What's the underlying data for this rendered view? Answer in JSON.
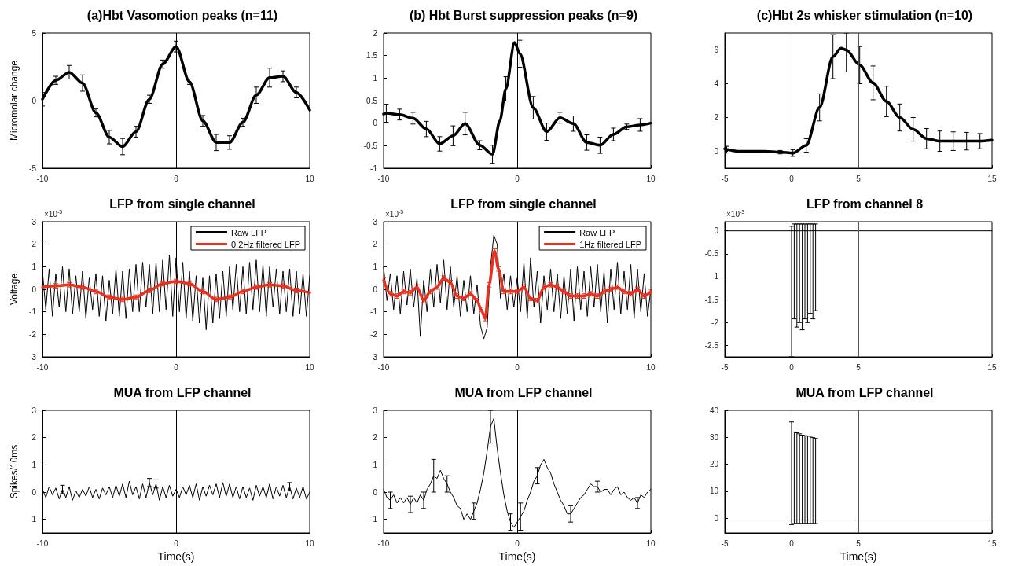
{
  "chart_data": [
    {
      "type": "line",
      "title": "(a)Hbt Vasomotion peaks (n=11)",
      "ylabel": "Micromolar change",
      "xlim": [
        -10,
        10
      ],
      "xticks": [
        -10,
        0,
        10
      ],
      "ylim": [
        -5,
        5
      ],
      "yticks": [
        -5,
        0,
        5
      ],
      "marker": "none",
      "line_style": "solid",
      "ref_lines": [
        {
          "axis": "x",
          "value": 0,
          "color": "#000000"
        }
      ],
      "series": [
        {
          "color": "#000000",
          "x": [
            -10,
            -9,
            -8,
            -7,
            -6,
            -5,
            -4,
            -3,
            -2,
            -1,
            0,
            1,
            2,
            3,
            4,
            5,
            6,
            7,
            8,
            9,
            10
          ],
          "values": [
            0.1,
            1.5,
            2.1,
            1.3,
            -0.9,
            -2.7,
            -3.4,
            -2.3,
            0.1,
            2.7,
            4.0,
            1.4,
            -1.5,
            -3.1,
            -3.1,
            -1.6,
            0.4,
            1.7,
            1.8,
            0.6,
            -0.7
          ],
          "errors": [
            0.5,
            0.3,
            0.5,
            0.6,
            0.3,
            0.5,
            0.6,
            0.4,
            0.3,
            0.3,
            0.4,
            0.2,
            0.4,
            0.6,
            0.5,
            0.3,
            0.6,
            0.7,
            0.4,
            0.4,
            null
          ]
        }
      ]
    },
    {
      "type": "line",
      "title": "(b) Hbt Burst suppression peaks (n=9)",
      "xlim": [
        -10,
        10
      ],
      "xticks": [
        -10,
        0,
        10
      ],
      "ylim": [
        -1,
        2
      ],
      "yticks": [
        -1,
        -0.5,
        0,
        0.5,
        1,
        1.5,
        2
      ],
      "marker": "none",
      "line_style": "solid",
      "ref_lines": [
        {
          "axis": "x",
          "value": 0,
          "color": "#000000"
        }
      ],
      "series": [
        {
          "color": "#000000",
          "x": [
            -10,
            -9.8,
            -8.8,
            -7.8,
            -6.8,
            -5.8,
            -4.8,
            -3.9,
            -2.8,
            -1.85,
            -1.3,
            -0.85,
            -0.2,
            0.2,
            1.2,
            2.2,
            3.2,
            4.2,
            5.2,
            6.2,
            7.2,
            8.2,
            9.2,
            10
          ],
          "values": [
            0.2,
            0.22,
            0.19,
            0.11,
            -0.13,
            -0.46,
            -0.28,
            -0.01,
            -0.49,
            -0.69,
            0.05,
            0.76,
            1.79,
            1.54,
            0.34,
            -0.19,
            0.12,
            -0.01,
            -0.43,
            -0.49,
            -0.25,
            -0.08,
            -0.04,
            0.0
          ],
          "errors": [
            null,
            0.2,
            0.12,
            0.13,
            0.17,
            0.16,
            0.22,
            0.25,
            0.1,
            0.2,
            null,
            0.27,
            null,
            0.3,
            0.25,
            0.19,
            0.12,
            0.17,
            0.17,
            0.18,
            0.14,
            0.06,
            0.14,
            null
          ]
        }
      ]
    },
    {
      "type": "line",
      "title": "(c)Hbt 2s whisker stimulation (n=10)",
      "xlim": [
        -5,
        15
      ],
      "xticks": [
        -5,
        0,
        5,
        15
      ],
      "ylim": [
        -1,
        7
      ],
      "yticks": [
        0,
        2,
        4,
        6
      ],
      "marker": "none",
      "line_style": "solid",
      "ref_lines": [
        {
          "axis": "x",
          "value": 0,
          "color": "#555555"
        },
        {
          "axis": "x",
          "value": 5,
          "color": "#555555"
        }
      ],
      "series": [
        {
          "color": "#000000",
          "x": [
            -5,
            -4.85,
            -4,
            -3,
            -2,
            -0.85,
            0.1,
            1.1,
            2.1,
            3.1,
            3.7,
            4.1,
            5.1,
            6.1,
            7.1,
            8.1,
            9.1,
            10.1,
            11.1,
            12.1,
            13.1,
            14.1,
            15
          ],
          "values": [
            0.15,
            0.1,
            0.0,
            0.0,
            0.0,
            -0.05,
            -0.1,
            0.35,
            2.6,
            5.6,
            6.1,
            6.0,
            5.1,
            4.05,
            2.95,
            2.0,
            1.3,
            0.75,
            0.6,
            0.6,
            0.6,
            0.6,
            0.66
          ],
          "errors": [
            null,
            0.2,
            null,
            null,
            null,
            0.1,
            0.2,
            0.4,
            0.8,
            1.3,
            null,
            [
              4.7,
              7
            ],
            1.1,
            1.0,
            0.9,
            0.8,
            0.7,
            0.6,
            0.6,
            0.55,
            0.52,
            0.45,
            null
          ]
        }
      ]
    },
    {
      "type": "line",
      "title": "LFP from single channel",
      "ylabel": "Voltage",
      "xlim": [
        -10,
        10
      ],
      "xticks": [
        -10,
        0,
        10
      ],
      "ylim": [
        -3,
        3
      ],
      "yticks": [
        -3,
        -2,
        -1,
        0,
        1,
        2,
        3
      ],
      "marker": "none",
      "line_style": "solid",
      "legend": "top right",
      "annotations": [
        "×10$^{-5}$"
      ],
      "ref_lines": [
        {
          "axis": "x",
          "value": 0,
          "color": "#000000"
        }
      ],
      "x": [
        -10,
        -9.75,
        -9.5,
        -9.25,
        -9,
        -8.75,
        -8.5,
        -8.25,
        -8,
        -7.75,
        -7.5,
        -7.25,
        -7,
        -6.75,
        -6.5,
        -6.25,
        -6,
        -5.75,
        -5.5,
        -5.25,
        -5,
        -4.75,
        -4.5,
        -4.25,
        -4,
        -3.75,
        -3.5,
        -3.25,
        -3,
        -2.75,
        -2.5,
        -2.25,
        -2,
        -1.75,
        -1.5,
        -1.25,
        -1,
        -0.75,
        -0.5,
        -0.25,
        0,
        0.25,
        0.5,
        0.75,
        1,
        1.25,
        1.5,
        1.75,
        2,
        2.25,
        2.5,
        2.75,
        3,
        3.25,
        3.5,
        3.75,
        4,
        4.25,
        4.5,
        4.75,
        5,
        5.25,
        5.5,
        5.75,
        6,
        6.25,
        6.5,
        6.75,
        7,
        7.25,
        7.5,
        7.75,
        8,
        8.25,
        8.5,
        8.75,
        9,
        9.25,
        9.5,
        9.75,
        10
      ],
      "series": [
        {
          "name": "Raw LFP",
          "color": "#000000",
          "values": [
            0.8,
            -0.9,
            0.9,
            -1.2,
            0.7,
            -0.8,
            1.0,
            -1.0,
            0.9,
            -1.1,
            0.6,
            -1.0,
            0.8,
            -1.3,
            0.5,
            -0.9,
            0.7,
            -1.2,
            0.6,
            -1.4,
            0.4,
            -1.1,
            0.9,
            -1.2,
            0.8,
            -1.3,
            0.9,
            -1.0,
            1.1,
            -1.0,
            1.2,
            -0.8,
            1.1,
            -1.1,
            1.2,
            -1.0,
            1.3,
            -0.9,
            1.5,
            -1.2,
            1.4,
            -1.0,
            1.2,
            -1.3,
            0.8,
            -1.4,
            0.6,
            -1.5,
            0.5,
            -1.8,
            0.6,
            -1.5,
            0.7,
            -1.3,
            0.8,
            -1.2,
            1.0,
            -0.9,
            1.1,
            -1.0,
            1.0,
            -1.1,
            1.2,
            -0.9,
            1.3,
            -1.0,
            1.1,
            -1.2,
            1.0,
            -0.8,
            0.9,
            -1.1,
            0.8,
            -1.0,
            0.9,
            -1.2,
            0.8,
            -1.1,
            0.7,
            -1.2,
            0.6
          ]
        },
        {
          "name": "0.2Hz filtered LFP",
          "color": "#e8301f",
          "x": [
            -10,
            -9,
            -8,
            -7,
            -6,
            -5,
            -4,
            -3,
            -2,
            -1,
            0,
            1,
            2,
            3,
            4,
            5,
            6,
            7,
            8,
            9,
            10
          ],
          "values": [
            0.1,
            0.15,
            0.2,
            0.1,
            -0.1,
            -0.35,
            -0.45,
            -0.35,
            -0.05,
            0.25,
            0.35,
            0.25,
            -0.1,
            -0.45,
            -0.35,
            -0.1,
            0.1,
            0.2,
            0.15,
            -0.05,
            -0.15
          ],
          "errors": [
            null,
            0.1,
            0.1,
            0.1,
            0.1,
            0.1,
            0.1,
            0.1,
            0.1,
            0.1,
            0.1,
            0.1,
            0.1,
            0.1,
            0.1,
            0.1,
            0.1,
            0.1,
            0.1,
            0.1,
            null
          ]
        }
      ]
    },
    {
      "type": "line",
      "title": "LFP from single channel",
      "xlim": [
        -10,
        10
      ],
      "xticks": [
        -10,
        0,
        10
      ],
      "ylim": [
        -3,
        3
      ],
      "yticks": [
        -3,
        -2,
        -1,
        0,
        1,
        2,
        3
      ],
      "marker": "none",
      "line_style": "solid",
      "legend": "top right",
      "annotations": [
        "×10$^{-5}$"
      ],
      "ref_lines": [
        {
          "axis": "x",
          "value": 0,
          "color": "#000000"
        }
      ],
      "x": [
        -10,
        -9.75,
        -9.5,
        -9.25,
        -9,
        -8.75,
        -8.5,
        -8.25,
        -8,
        -7.75,
        -7.5,
        -7.25,
        -7,
        -6.75,
        -6.5,
        -6.25,
        -6,
        -5.75,
        -5.5,
        -5.25,
        -5,
        -4.75,
        -4.5,
        -4.25,
        -4,
        -3.75,
        -3.5,
        -3.25,
        -3,
        -2.75,
        -2.5,
        -2.25,
        -2,
        -1.75,
        -1.5,
        -1.25,
        -1,
        -0.75,
        -0.5,
        -0.25,
        0,
        0.25,
        0.5,
        0.75,
        1,
        1.25,
        1.5,
        1.75,
        2,
        2.25,
        2.5,
        2.75,
        3,
        3.25,
        3.5,
        3.75,
        4,
        4.25,
        4.5,
        4.75,
        5,
        5.25,
        5.5,
        5.75,
        6,
        6.25,
        6.5,
        6.75,
        7,
        7.25,
        7.5,
        7.75,
        8,
        8.25,
        8.5,
        8.75,
        9,
        9.25,
        9.5,
        9.75,
        10
      ],
      "series": [
        {
          "name": "Raw LFP",
          "color": "#000000",
          "values": [
            1.0,
            -0.5,
            0.7,
            -0.9,
            0.6,
            -1.1,
            0.8,
            -0.7,
            0.9,
            -0.8,
            0.5,
            -2.1,
            0.4,
            -1.0,
            0.9,
            -0.8,
            1.1,
            -0.6,
            1.3,
            -0.9,
            1.0,
            -0.8,
            0.6,
            -1.2,
            0.4,
            -1.0,
            0.6,
            -1.1,
            0.2,
            -1.6,
            -2.2,
            -1.7,
            1.0,
            2.4,
            2.0,
            -0.4,
            0.7,
            -0.9,
            0.6,
            -0.8,
            0.5,
            -1.0,
            1.2,
            -1.3,
            1.4,
            -0.8,
            0.8,
            -1.5,
            0.6,
            -0.9,
            0.9,
            -1.0,
            0.7,
            -1.3,
            0.6,
            -1.1,
            0.9,
            -1.4,
            1.0,
            -0.9,
            0.8,
            -1.2,
            1.0,
            -0.8,
            1.1,
            -1.0,
            0.8,
            -1.5,
            0.9,
            -0.9,
            1.2,
            -1.1,
            0.8,
            -0.9,
            1.1,
            -1.3,
            0.9,
            -1.0,
            0.7,
            -1.2,
            0.0
          ]
        },
        {
          "name": "1Hz filtered LFP",
          "color": "#e8301f",
          "x": [
            -10,
            -9.5,
            -9,
            -8.5,
            -8,
            -7.5,
            -7,
            -6.5,
            -6,
            -5.5,
            -5,
            -4.5,
            -4,
            -3.5,
            -3,
            -2.7,
            -2.4,
            -2.1,
            -1.7,
            -1.4,
            -1.0,
            -0.5,
            0,
            0.5,
            1,
            1.5,
            2,
            2.5,
            3,
            3.5,
            4,
            4.5,
            5,
            5.5,
            6,
            6.5,
            7,
            7.5,
            8,
            8.5,
            9,
            9.5,
            10
          ],
          "values": [
            0.4,
            -0.2,
            -0.3,
            -0.1,
            -0.15,
            0.1,
            -0.5,
            -0.1,
            0.1,
            0.5,
            0.3,
            -0.3,
            -0.4,
            -0.2,
            -0.5,
            -0.9,
            -1.3,
            0.2,
            1.7,
            0.9,
            -0.1,
            -0.1,
            -0.1,
            0.1,
            -0.4,
            -0.5,
            0.1,
            0.2,
            0.1,
            -0.1,
            -0.3,
            -0.3,
            -0.3,
            -0.2,
            -0.3,
            -0.1,
            0.0,
            0.1,
            -0.1,
            -0.2,
            0.0,
            -0.3,
            -0.1
          ],
          "errors": [
            0.1,
            0.1,
            0.1,
            0.1,
            0.1,
            0.1,
            0.1,
            0.1,
            0.1,
            0.1,
            0.1,
            0.1,
            0.1,
            0.1,
            0.1,
            0.1,
            0.1,
            0.1,
            0.1,
            0.1,
            0.1,
            0.1,
            0.1,
            0.1,
            0.1,
            0.1,
            0.1,
            0.1,
            0.1,
            0.1,
            0.1,
            0.1,
            0.1,
            0.1,
            0.1,
            0.1,
            0.1,
            0.1,
            0.1,
            0.1,
            0.1,
            0.1,
            0.1
          ]
        }
      ]
    },
    {
      "type": "line",
      "title": "LFP from channel 8",
      "xlim": [
        -5,
        15
      ],
      "xticks": [
        -5,
        0,
        5,
        15
      ],
      "ylim": [
        -2.75,
        0.2
      ],
      "yticks": [
        -2.5,
        -2,
        -1.5,
        -1,
        -0.5,
        0
      ],
      "marker": "none",
      "line_style": "solid",
      "annotations": [
        "×10$^{-3}$"
      ],
      "ref_lines": [
        {
          "axis": "x",
          "value": 0,
          "color": "#555555"
        },
        {
          "axis": "x",
          "value": 5,
          "color": "#555555"
        }
      ],
      "series": [
        {
          "color": "#000000",
          "x": [
            -5,
            -4,
            -3,
            -2,
            -1,
            0,
            0.2,
            0.4,
            0.6,
            0.8,
            1,
            1.2,
            1.4,
            1.6,
            1.8,
            2,
            3,
            4,
            5,
            6,
            7,
            8,
            9,
            10,
            11,
            12,
            13,
            14,
            15
          ],
          "values": [
            0,
            0,
            0,
            0,
            0,
            0,
            0,
            0,
            0,
            0,
            0,
            0,
            0,
            0,
            0,
            0,
            0,
            0,
            0,
            0,
            0,
            0,
            0,
            0,
            0,
            0,
            0,
            0,
            0
          ],
          "errors": [
            null,
            null,
            null,
            null,
            null,
            [
              -2.75,
              0.1
            ],
            [
              -1.92,
              0.15
            ],
            [
              -2.1,
              0.15
            ],
            [
              -2.0,
              0.15
            ],
            [
              -2.16,
              0.15
            ],
            [
              -1.92,
              0.15
            ],
            [
              -2.0,
              0.15
            ],
            [
              -1.8,
              0.15
            ],
            [
              -1.92,
              0.15
            ],
            [
              -1.74,
              0.15
            ],
            null,
            null,
            null,
            null,
            null,
            null,
            null,
            null,
            null,
            null,
            null,
            null,
            null,
            null
          ]
        }
      ]
    },
    {
      "type": "line",
      "title": "MUA from LFP channel",
      "xlabel": "Time(s)",
      "ylabel": "Spikes/10ms",
      "xlim": [
        -10,
        10
      ],
      "xticks": [
        -10,
        0,
        10
      ],
      "ylim": [
        -1.5,
        3
      ],
      "yticks": [
        -1,
        0,
        1,
        2,
        3
      ],
      "marker": "none",
      "line_style": "solid",
      "ref_lines": [
        {
          "axis": "x",
          "value": 0,
          "color": "#000000"
        }
      ],
      "x": [
        -10,
        -9.75,
        -9.5,
        -9.25,
        -9,
        -8.75,
        -8.5,
        -8.25,
        -8,
        -7.75,
        -7.5,
        -7.25,
        -7,
        -6.75,
        -6.5,
        -6.25,
        -6,
        -5.75,
        -5.5,
        -5.25,
        -5,
        -4.75,
        -4.5,
        -4.25,
        -4,
        -3.75,
        -3.5,
        -3.25,
        -3,
        -2.75,
        -2.5,
        -2.25,
        -2,
        -1.75,
        -1.5,
        -1.25,
        -1,
        -0.75,
        -0.5,
        -0.25,
        0,
        0.25,
        0.5,
        0.75,
        1,
        1.25,
        1.5,
        1.75,
        2,
        2.25,
        2.5,
        2.75,
        3,
        3.25,
        3.5,
        3.75,
        4,
        4.25,
        4.5,
        4.75,
        5,
        5.25,
        5.5,
        5.75,
        6,
        6.25,
        6.5,
        6.75,
        7,
        7.25,
        7.5,
        7.75,
        8,
        8.25,
        8.5,
        8.75,
        9,
        9.25,
        9.5,
        9.75,
        10
      ],
      "series": [
        {
          "color": "#000000",
          "values": [
            0.1,
            -0.2,
            0.2,
            -0.1,
            0.15,
            -0.25,
            0.1,
            -0.2,
            0.2,
            -0.3,
            0.05,
            -0.2,
            0.1,
            -0.15,
            0.2,
            -0.2,
            0.1,
            -0.25,
            0.15,
            -0.1,
            0.2,
            -0.2,
            0.25,
            -0.15,
            0.3,
            -0.2,
            0.4,
            -0.1,
            0.2,
            -0.25,
            0.3,
            -0.2,
            0.35,
            -0.1,
            0.3,
            -0.3,
            0.2,
            -0.2,
            0.25,
            -0.15,
            0.1,
            -0.2,
            0.2,
            -0.1,
            0.25,
            -0.2,
            0.3,
            -0.3,
            0.2,
            -0.15,
            0.25,
            -0.1,
            0.3,
            -0.2,
            0.35,
            -0.15,
            0.3,
            -0.2,
            0.2,
            -0.25,
            0.2,
            -0.2,
            0.15,
            -0.3,
            0.25,
            -0.15,
            0.2,
            -0.2,
            0.3,
            -0.25,
            0.2,
            -0.15,
            0.25,
            -0.2,
            0.2,
            -0.25,
            0.15,
            -0.2,
            0.2,
            -0.25,
            0.0
          ],
          "errors": [
            null,
            null,
            null,
            null,
            null,
            null,
            0.15,
            null,
            null,
            null,
            null,
            null,
            null,
            null,
            null,
            null,
            null,
            null,
            null,
            null,
            null,
            null,
            null,
            null,
            null,
            null,
            null,
            null,
            null,
            null,
            null,
            null,
            0.15,
            null,
            0.15,
            null,
            null,
            null,
            null,
            null,
            null,
            null,
            null,
            null,
            null,
            null,
            null,
            null,
            null,
            null,
            null,
            null,
            null,
            null,
            null,
            null,
            null,
            null,
            null,
            null,
            null,
            null,
            null,
            null,
            null,
            null,
            null,
            null,
            null,
            null,
            null,
            null,
            null,
            null,
            0.15,
            null,
            null,
            null,
            null,
            null,
            null
          ]
        }
      ]
    },
    {
      "type": "line",
      "title": "MUA from LFP channel",
      "xlabel": "Time(s)",
      "xlim": [
        -10,
        10
      ],
      "xticks": [
        -10,
        0,
        10
      ],
      "ylim": [
        -1.5,
        3
      ],
      "yticks": [
        -1,
        0,
        1,
        2,
        3
      ],
      "marker": "none",
      "line_style": "solid",
      "ref_lines": [
        {
          "axis": "x",
          "value": 0,
          "color": "#000000"
        }
      ],
      "x": [
        -10,
        -9.75,
        -9.5,
        -9.25,
        -9,
        -8.75,
        -8.5,
        -8.25,
        -8,
        -7.75,
        -7.5,
        -7.25,
        -7,
        -6.75,
        -6.5,
        -6.25,
        -6,
        -5.75,
        -5.5,
        -5.25,
        -5,
        -4.75,
        -4.5,
        -4.25,
        -4,
        -3.75,
        -3.5,
        -3.25,
        -3,
        -2.75,
        -2.5,
        -2.25,
        -2,
        -1.75,
        -1.5,
        -1.25,
        -1,
        -0.75,
        -0.5,
        -0.25,
        0,
        0.25,
        0.5,
        0.75,
        1,
        1.25,
        1.5,
        1.75,
        2,
        2.25,
        2.5,
        2.75,
        3,
        3.25,
        3.5,
        3.75,
        4,
        4.25,
        4.5,
        4.75,
        5,
        5.25,
        5.5,
        5.75,
        6,
        6.25,
        6.5,
        6.75,
        7,
        7.25,
        7.5,
        7.75,
        8,
        8.25,
        8.5,
        8.75,
        9,
        9.25,
        9.5,
        9.75,
        10
      ],
      "series": [
        {
          "color": "#000000",
          "values": [
            0.1,
            -0.2,
            -0.3,
            -0.1,
            -0.4,
            -0.2,
            -0.4,
            -0.2,
            -0.45,
            -0.2,
            -0.4,
            -0.1,
            -0.3,
            0.1,
            0.3,
            0.6,
            0.5,
            0.8,
            0.5,
            0.3,
            0.0,
            -0.2,
            -0.5,
            -0.6,
            -1.0,
            -0.8,
            -1.0,
            -0.7,
            -0.4,
            0.1,
            0.7,
            1.5,
            2.4,
            2.7,
            1.6,
            0.7,
            -0.1,
            -0.7,
            -1.1,
            -1.3,
            -1.1,
            -0.9,
            -0.7,
            -0.3,
            0.0,
            0.4,
            0.6,
            1.0,
            1.2,
            0.9,
            0.7,
            0.3,
            0.0,
            -0.3,
            -0.5,
            -0.8,
            -0.8,
            -0.6,
            -0.4,
            -0.2,
            -0.1,
            0.1,
            0.3,
            0.2,
            0.2,
            0.0,
            0.1,
            0.1,
            -0.1,
            0.1,
            0.2,
            -0.1,
            0.0,
            -0.2,
            -0.3,
            -0.2,
            -0.4,
            -0.1,
            -0.2,
            0.0,
            0.1
          ],
          "errors": [
            null,
            null,
            0.3,
            null,
            null,
            null,
            null,
            null,
            0.3,
            null,
            null,
            null,
            0.3,
            null,
            null,
            0.6,
            null,
            null,
            null,
            0.3,
            null,
            null,
            null,
            null,
            null,
            null,
            null,
            0.3,
            null,
            null,
            null,
            null,
            0.6,
            null,
            null,
            null,
            null,
            null,
            0.3,
            null,
            null,
            0.5,
            null,
            null,
            null,
            null,
            0.3,
            null,
            null,
            null,
            null,
            null,
            null,
            null,
            null,
            null,
            0.3,
            null,
            null,
            null,
            null,
            null,
            null,
            null,
            0.2,
            null,
            null,
            null,
            null,
            null,
            null,
            null,
            null,
            null,
            null,
            null,
            0.2,
            null,
            null,
            null,
            null
          ]
        }
      ]
    },
    {
      "type": "line",
      "title": "MUA from LFP channel",
      "xlabel": "Time(s)",
      "xlim": [
        -5,
        15
      ],
      "xticks": [
        -5,
        0,
        5,
        15
      ],
      "ylim": [
        -5.5,
        40
      ],
      "yticks": [
        0,
        10,
        20,
        30,
        40
      ],
      "marker": "none",
      "line_style": "solid",
      "ref_lines": [
        {
          "axis": "x",
          "value": 0,
          "color": "#555555"
        },
        {
          "axis": "x",
          "value": 5,
          "color": "#555555"
        }
      ],
      "series": [
        {
          "color": "#000000",
          "x": [
            -5,
            -4,
            -3,
            -2,
            -1,
            0,
            0.2,
            0.4,
            0.6,
            0.8,
            1,
            1.2,
            1.4,
            1.6,
            1.8,
            2,
            3,
            4,
            5,
            6,
            7,
            8,
            9,
            10,
            11,
            12,
            13,
            14,
            15
          ],
          "values": [
            -0.7,
            -0.7,
            -0.7,
            -0.7,
            -0.7,
            -0.7,
            -0.7,
            -0.7,
            -0.7,
            -0.7,
            -0.7,
            -0.7,
            -0.7,
            -0.7,
            -0.7,
            -0.7,
            -0.7,
            -0.7,
            -0.7,
            -0.7,
            -0.7,
            -0.7,
            -0.7,
            -0.7,
            -0.7,
            -0.7,
            -0.7,
            -0.7,
            -0.7
          ],
          "errors": [
            null,
            null,
            null,
            null,
            null,
            [
              -2.4,
              35.7
            ],
            [
              -2,
              32
            ],
            [
              -2,
              31.7
            ],
            [
              -2,
              31.3
            ],
            [
              -2,
              30.8
            ],
            [
              -2,
              30.6
            ],
            [
              -2,
              30.5
            ],
            [
              -2,
              30.4
            ],
            [
              -2,
              29.9
            ],
            [
              -2,
              29.6
            ],
            null,
            null,
            null,
            null,
            null,
            null,
            null,
            null,
            null,
            null,
            null,
            null,
            null,
            null
          ]
        }
      ]
    }
  ]
}
